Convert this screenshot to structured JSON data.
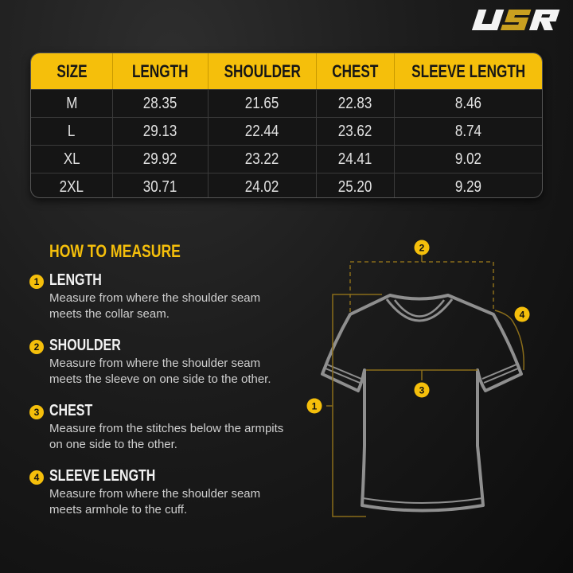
{
  "brand": {
    "logo_text": "USR"
  },
  "colors": {
    "accent": "#f5bf0b",
    "background": "#151515",
    "shirt_outline": "#8f8f8f"
  },
  "size_table": {
    "headers": [
      "SIZE",
      "LENGTH",
      "SHOULDER",
      "CHEST",
      "SLEEVE LENGTH"
    ],
    "rows": [
      [
        "M",
        "28.35",
        "21.65",
        "22.83",
        "8.46"
      ],
      [
        "L",
        "29.13",
        "22.44",
        "23.62",
        "8.74"
      ],
      [
        "XL",
        "29.92",
        "23.22",
        "24.41",
        "9.02"
      ],
      [
        "2XL",
        "30.71",
        "24.02",
        "25.20",
        "9.29"
      ]
    ]
  },
  "how_to_measure": {
    "title": "HOW TO MEASURE",
    "items": [
      {
        "number": "1",
        "title": "LENGTH",
        "description": "Measure from where the shoulder seam meets the collar seam."
      },
      {
        "number": "2",
        "title": "SHOULDER",
        "description": "Measure from where the shoulder seam meets the sleeve on one side to the other."
      },
      {
        "number": "3",
        "title": "CHEST",
        "description": "Measure from the stitches below the armpits on one side to the other."
      },
      {
        "number": "4",
        "title": "SLEEVE LENGTH",
        "description": "Measure from where the shoulder seam meets armhole to the cuff."
      }
    ]
  },
  "diagram": {
    "markers": [
      "1",
      "2",
      "3",
      "4"
    ]
  }
}
